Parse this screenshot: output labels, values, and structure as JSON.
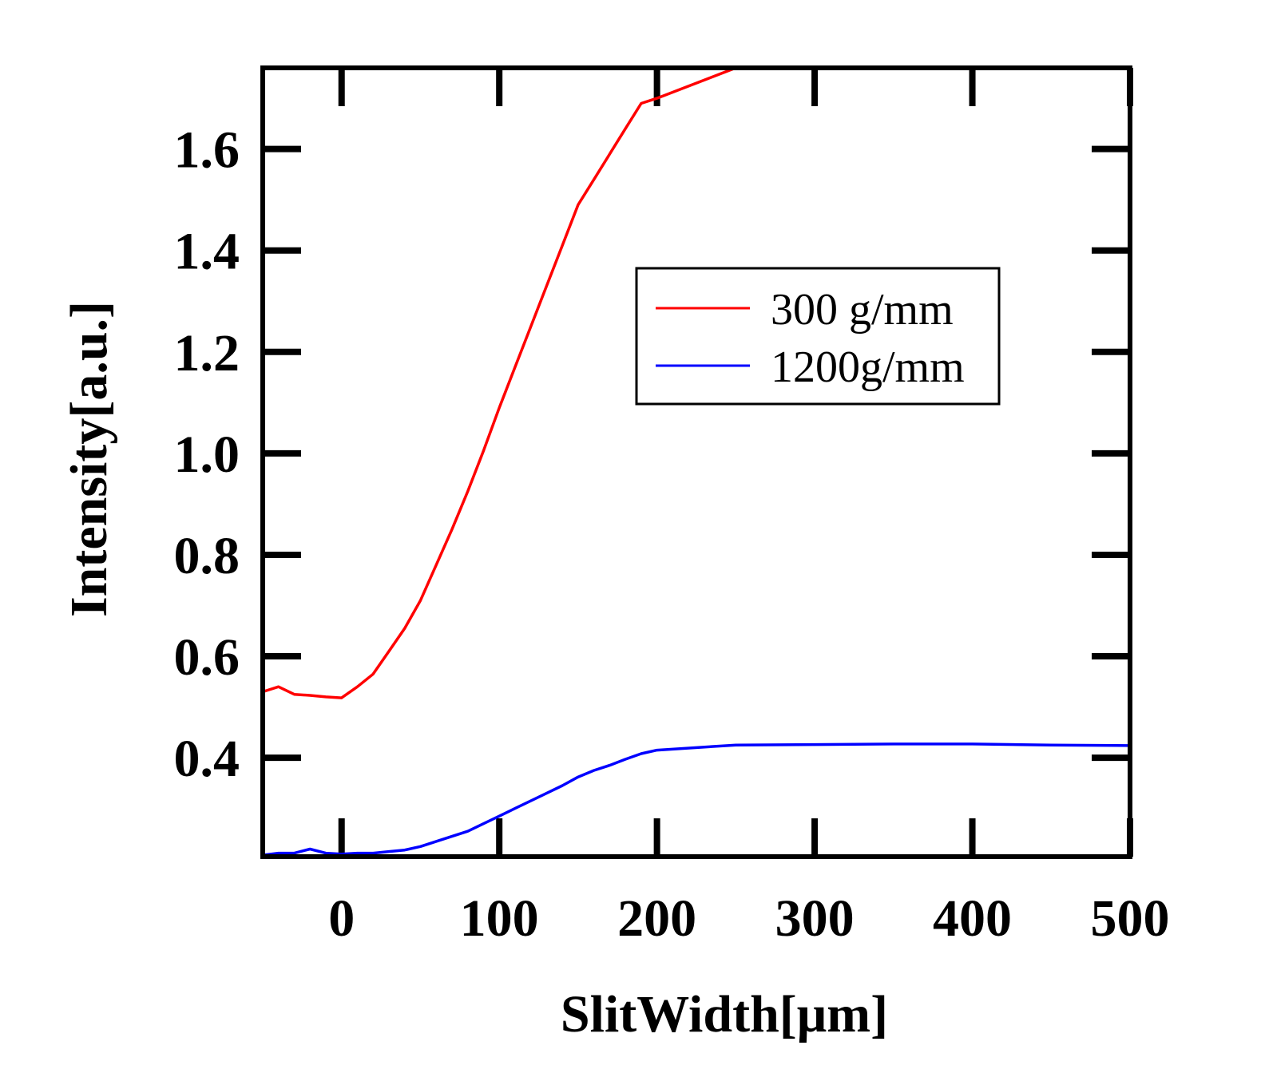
{
  "chart_data": {
    "type": "line",
    "xlabel": "SlitWidth[μm]",
    "ylabel": "Intensity[a.u.]",
    "xlim": [
      -50,
      500
    ],
    "ylim": [
      0.205,
      1.76
    ],
    "xticks": [
      0,
      100,
      200,
      300,
      400,
      500
    ],
    "xtick_labels": [
      "0",
      "100",
      "200",
      "300",
      "400",
      "500"
    ],
    "yticks": [
      0.4,
      0.6,
      0.8,
      1.0,
      1.2,
      1.4,
      1.6
    ],
    "ytick_labels": [
      "0.4",
      "0.6",
      "0.8",
      "1.0",
      "1.2",
      "1.4",
      "1.6"
    ],
    "grid": false,
    "legend_position": "center-right",
    "series": [
      {
        "name": "300 g/mm",
        "color": "#ff0000",
        "x": [
          -50,
          -40,
          -30,
          -20,
          -10,
          0,
          10,
          20,
          30,
          40,
          50,
          60,
          70,
          80,
          90,
          100,
          110,
          120,
          130,
          140,
          150,
          160,
          170,
          180,
          190,
          200,
          250,
          300,
          350,
          400,
          450,
          500
        ],
        "y": [
          0.53,
          0.54,
          0.525,
          0.523,
          0.52,
          0.518,
          0.54,
          0.565,
          0.61,
          0.655,
          0.71,
          0.78,
          0.85,
          0.925,
          1.005,
          1.09,
          1.17,
          1.25,
          1.33,
          1.41,
          1.49,
          1.54,
          1.59,
          1.64,
          1.69,
          1.7,
          1.76,
          1.76,
          1.76,
          1.76,
          1.76,
          1.76
        ]
      },
      {
        "name": "1200g/mm",
        "color": "#0000ff",
        "x": [
          -50,
          -40,
          -30,
          -20,
          -10,
          0,
          10,
          20,
          30,
          40,
          50,
          60,
          70,
          80,
          90,
          100,
          110,
          120,
          130,
          140,
          150,
          160,
          170,
          180,
          190,
          200,
          250,
          300,
          350,
          400,
          450,
          500
        ],
        "y": [
          0.208,
          0.212,
          0.212,
          0.22,
          0.212,
          0.21,
          0.212,
          0.212,
          0.215,
          0.218,
          0.225,
          0.235,
          0.245,
          0.255,
          0.27,
          0.285,
          0.3,
          0.315,
          0.33,
          0.345,
          0.362,
          0.375,
          0.385,
          0.397,
          0.408,
          0.415,
          0.425,
          0.426,
          0.427,
          0.427,
          0.425,
          0.424
        ]
      }
    ]
  }
}
